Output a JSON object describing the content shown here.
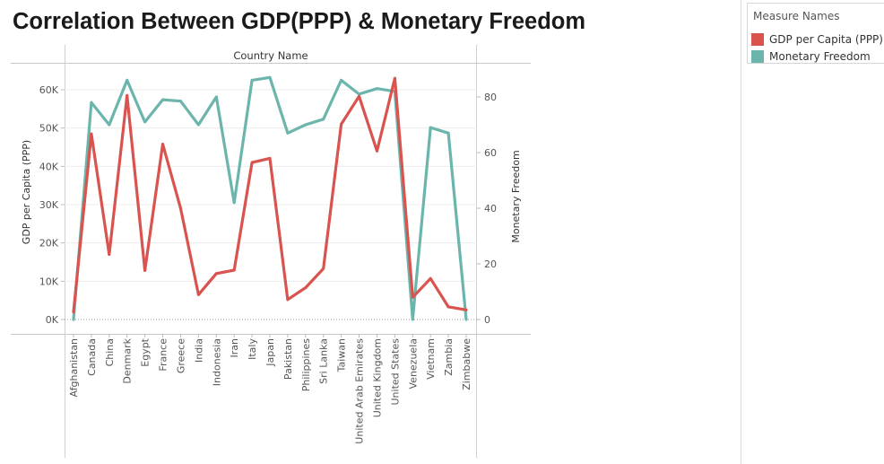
{
  "title": "Correlation Between GDP(PPP) & Monetary Freedom",
  "legend": {
    "title": "Measure Names",
    "items": [
      {
        "label": "GDP per Capita (PPP)",
        "color": "#d9534f"
      },
      {
        "label": "Monetary Freedom",
        "color": "#6cb5ad"
      }
    ]
  },
  "chart_data": {
    "type": "line",
    "title": "Correlation Between GDP(PPP) & Monetary Freedom",
    "xlabel": "Country Name",
    "ylabel_left": "GDP per Capita (PPP)",
    "ylabel_right": "Monetary Freedom",
    "categories": [
      "Afghanistan",
      "Canada",
      "China",
      "Denmark",
      "Egypt",
      "France",
      "Greece",
      "India",
      "Indonesia",
      "Iran",
      "Italy",
      "Japan",
      "Pakistan",
      "Philippines",
      "Sri Lanka",
      "Taiwan",
      "United Arab Emirates",
      "United Kingdom",
      "United States",
      "Venezuela",
      "Vietnam",
      "Zambia",
      "Zimbabwe"
    ],
    "y_left": {
      "ylim": [
        0,
        66000
      ],
      "ticks": [
        0,
        10000,
        20000,
        30000,
        40000,
        50000,
        60000
      ],
      "tick_labels": [
        "0K",
        "10K",
        "20K",
        "30K",
        "40K",
        "50K",
        "60K"
      ]
    },
    "y_right": {
      "ylim": [
        0,
        90
      ],
      "ticks": [
        0,
        20,
        40,
        60,
        80
      ],
      "tick_labels": [
        "0",
        "20",
        "40",
        "60",
        "80"
      ]
    },
    "series": [
      {
        "name": "GDP per Capita (PPP)",
        "axis": "left",
        "color": "#d9534f",
        "values": [
          2000,
          48500,
          17000,
          58500,
          12800,
          45800,
          29000,
          6500,
          12000,
          12900,
          41000,
          42100,
          5200,
          8300,
          13300,
          51000,
          58300,
          44000,
          63000,
          5800,
          10700,
          3300,
          2500
        ]
      },
      {
        "name": "Monetary Freedom",
        "axis": "right",
        "color": "#6cb5ad",
        "values": [
          0,
          78,
          70,
          86,
          71,
          79,
          78.5,
          70,
          80,
          42,
          86,
          87,
          67,
          70,
          72,
          86,
          81,
          83,
          82,
          0,
          69,
          67,
          0
        ]
      }
    ],
    "grid": true,
    "legend_position": "top-right"
  }
}
